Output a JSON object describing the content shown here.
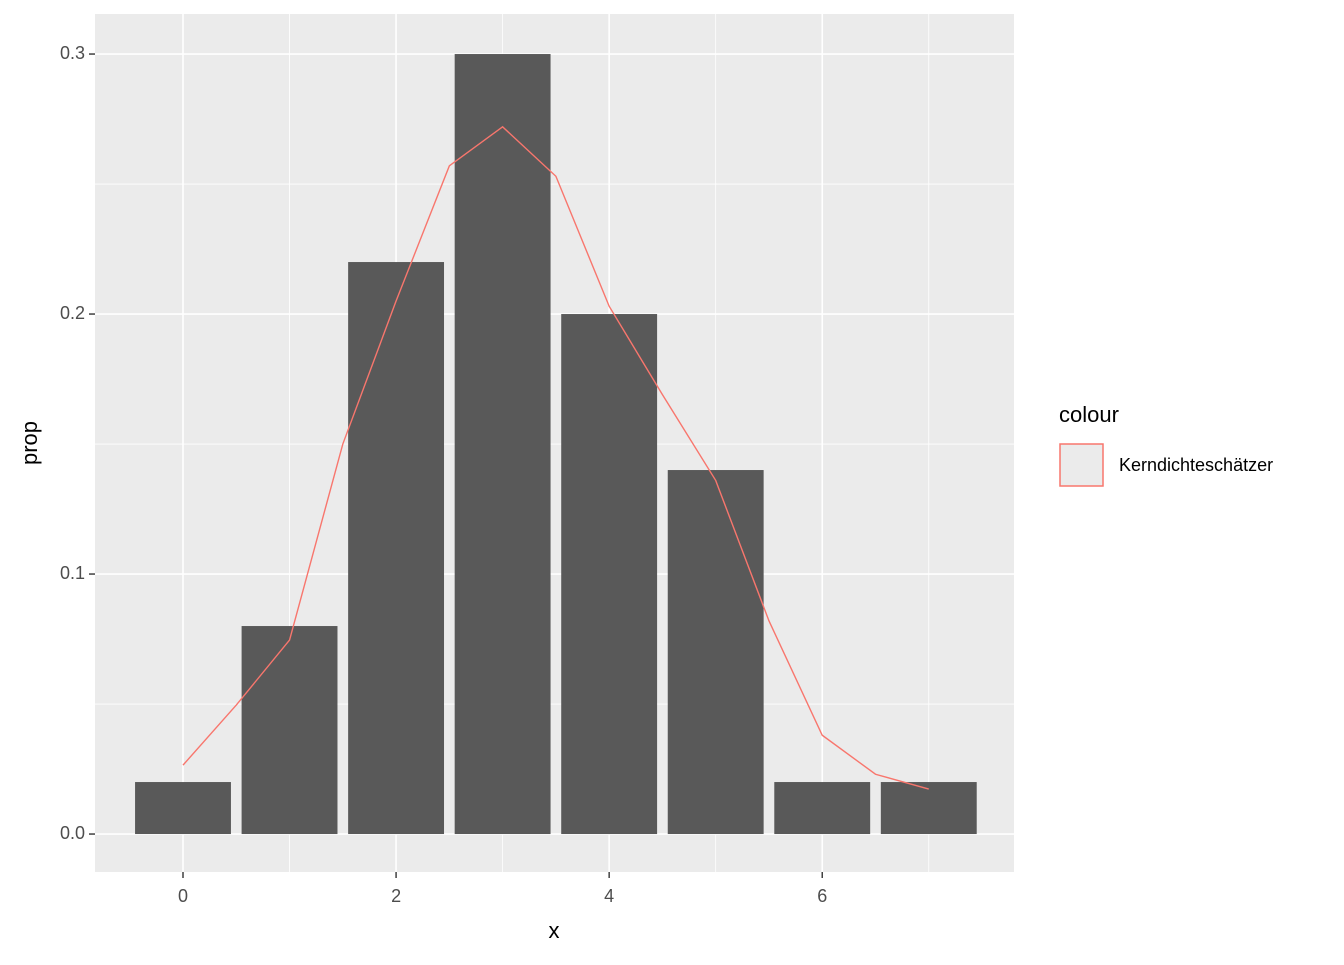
{
  "chart_data": {
    "type": "bar",
    "x_label": "x",
    "y_label": "prop",
    "x": [
      0,
      1,
      2,
      3,
      4,
      5,
      6,
      7
    ],
    "values": [
      0.02,
      0.08,
      0.22,
      0.3,
      0.2,
      0.14,
      0.02,
      0.02
    ],
    "color": "#595959",
    "density": {
      "name": "Kerndichteschätzer",
      "color": "#F8766D",
      "x": [
        0,
        0.5,
        1,
        1.5,
        2,
        2.5,
        3,
        3.5,
        4,
        4.5,
        5,
        5.5,
        6,
        6.5,
        7
      ],
      "values": [
        0.0265,
        0.0496,
        0.0746,
        0.15,
        0.205,
        0.257,
        0.272,
        0.253,
        0.203,
        0.169,
        0.136,
        0.082,
        0.038,
        0.023,
        0.0173
      ]
    },
    "legend_title": "colour",
    "xlim": [
      -0.826,
      7.8
    ],
    "ylim": [
      -0.0146,
      0.3154
    ],
    "xticks": [
      0,
      2,
      4,
      6
    ],
    "yticks": [
      {
        "value": 0,
        "label": "0.0"
      },
      0.1,
      0.2,
      0.3
    ],
    "xminor": [
      1,
      3,
      5,
      7
    ],
    "yminor": [
      0.05,
      0.15,
      0.25
    ],
    "grid": true
  }
}
